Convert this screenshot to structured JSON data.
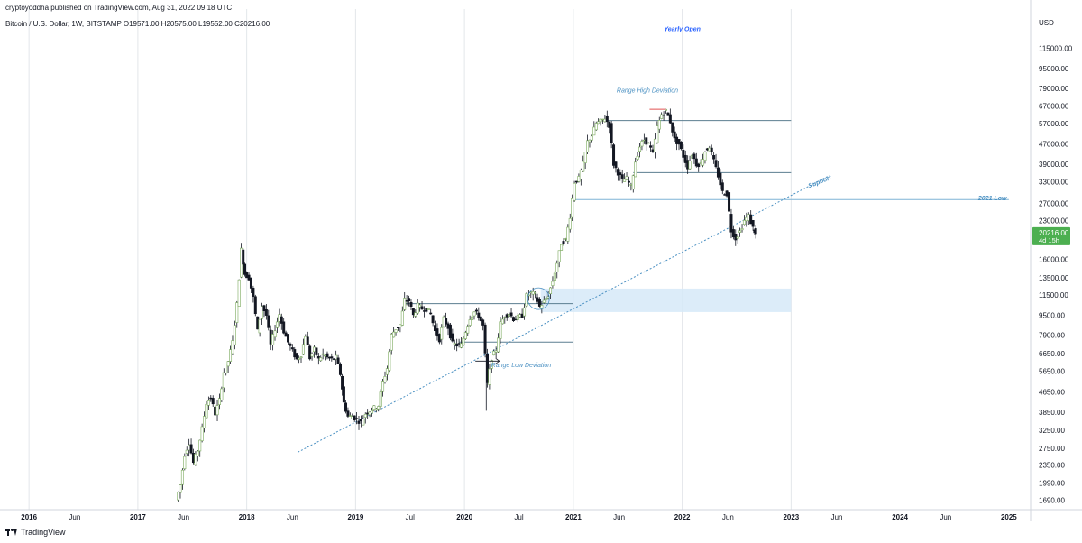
{
  "header": {
    "published": "cryptoyoddha published on TradingView.com, Aug 31, 2022 09:18 UTC",
    "symbol_line": "Bitcoin / U.S. Dollar, 1W, BITSTAMP  O19571.00  H20575.00  L19552.00  C20216.00",
    "currency": "USD"
  },
  "footer": {
    "brand": "TradingView",
    "logo_icon": "tradingview-logo-icon"
  },
  "last_price": {
    "value": "20216.00",
    "countdown": "4d 15h",
    "color": "#4caf50"
  },
  "chart_data": {
    "type": "candlestick",
    "instrument": "Bitcoin / U.S. Dollar",
    "exchange": "BITSTAMP",
    "timeframe": "1W",
    "ohlc_last": {
      "open": 19571.0,
      "high": 20575.0,
      "low": 19552.0,
      "close": 20216.0
    },
    "y_scale": "log",
    "ylim": [
      1550,
      140000
    ],
    "xlim": [
      2015.8,
      2025.2
    ],
    "y_ticks": [
      115000,
      95000,
      79000,
      67000,
      57000,
      47000,
      39000,
      33000,
      27000,
      23000,
      16000,
      13500,
      11500,
      9500,
      7900,
      6650,
      5650,
      4650,
      3850,
      3250,
      2750,
      2350,
      1990,
      1690
    ],
    "y_tick_labels": [
      "115000.00",
      "95000.00",
      "79000.00",
      "67000.00",
      "57000.00",
      "47000.00",
      "39000.00",
      "33000.00",
      "27000.00",
      "23000.00",
      "16000.00",
      "13500.00",
      "11500.00",
      "9500.00",
      "7900.00",
      "6650.00",
      "5650.00",
      "4650.00",
      "3850.00",
      "3250.00",
      "2750.00",
      "2350.00",
      "1990.00",
      "1690.00"
    ],
    "x_ticks": [
      {
        "t": 2016.0,
        "label": "2016",
        "bold": true
      },
      {
        "t": 2016.42,
        "label": "Jun",
        "bold": false
      },
      {
        "t": 2017.0,
        "label": "2017",
        "bold": true
      },
      {
        "t": 2017.42,
        "label": "Jun",
        "bold": false
      },
      {
        "t": 2018.0,
        "label": "2018",
        "bold": true
      },
      {
        "t": 2018.42,
        "label": "Jun",
        "bold": false
      },
      {
        "t": 2019.0,
        "label": "2019",
        "bold": true
      },
      {
        "t": 2019.5,
        "label": "Jul",
        "bold": false
      },
      {
        "t": 2020.0,
        "label": "2020",
        "bold": true
      },
      {
        "t": 2020.5,
        "label": "Jul",
        "bold": false
      },
      {
        "t": 2021.0,
        "label": "2021",
        "bold": true
      },
      {
        "t": 2021.42,
        "label": "Jun",
        "bold": false
      },
      {
        "t": 2022.0,
        "label": "2022",
        "bold": true
      },
      {
        "t": 2022.42,
        "label": "Jun",
        "bold": false
      },
      {
        "t": 2023.0,
        "label": "2023",
        "bold": true
      },
      {
        "t": 2023.42,
        "label": "Jun",
        "bold": false
      },
      {
        "t": 2024.0,
        "label": "2024",
        "bold": true
      },
      {
        "t": 2024.42,
        "label": "Jun",
        "bold": false
      },
      {
        "t": 2025.0,
        "label": "2025",
        "bold": true
      }
    ],
    "price_path": [
      [
        2017.36,
        1700
      ],
      [
        2017.4,
        1950
      ],
      [
        2017.44,
        2600
      ],
      [
        2017.48,
        2900
      ],
      [
        2017.52,
        2400
      ],
      [
        2017.56,
        2700
      ],
      [
        2017.6,
        3300
      ],
      [
        2017.64,
        4200
      ],
      [
        2017.68,
        4400
      ],
      [
        2017.72,
        3800
      ],
      [
        2017.76,
        4300
      ],
      [
        2017.8,
        5600
      ],
      [
        2017.84,
        6200
      ],
      [
        2017.88,
        7400
      ],
      [
        2017.92,
        10500
      ],
      [
        2017.96,
        17500
      ],
      [
        2017.99,
        14000
      ],
      [
        2018.03,
        13500
      ],
      [
        2018.07,
        11200
      ],
      [
        2018.11,
        8200
      ],
      [
        2018.15,
        10400
      ],
      [
        2018.19,
        9500
      ],
      [
        2018.23,
        7200
      ],
      [
        2018.27,
        8400
      ],
      [
        2018.31,
        9600
      ],
      [
        2018.35,
        8200
      ],
      [
        2018.39,
        7400
      ],
      [
        2018.43,
        6800
      ],
      [
        2018.47,
        6300
      ],
      [
        2018.51,
        6600
      ],
      [
        2018.55,
        7900
      ],
      [
        2018.59,
        6400
      ],
      [
        2018.63,
        6900
      ],
      [
        2018.67,
        6300
      ],
      [
        2018.71,
        6600
      ],
      [
        2018.75,
        6400
      ],
      [
        2018.79,
        6300
      ],
      [
        2018.83,
        6400
      ],
      [
        2018.87,
        5500
      ],
      [
        2018.9,
        4200
      ],
      [
        2018.94,
        3700
      ],
      [
        2018.98,
        3700
      ],
      [
        2019.02,
        3600
      ],
      [
        2019.06,
        3500
      ],
      [
        2019.1,
        3800
      ],
      [
        2019.14,
        3900
      ],
      [
        2019.18,
        4000
      ],
      [
        2019.22,
        4100
      ],
      [
        2019.26,
        5100
      ],
      [
        2019.3,
        5800
      ],
      [
        2019.34,
        7900
      ],
      [
        2019.38,
        8400
      ],
      [
        2019.42,
        8700
      ],
      [
        2019.46,
        11000
      ],
      [
        2019.5,
        10900
      ],
      [
        2019.54,
        9500
      ],
      [
        2019.58,
        10400
      ],
      [
        2019.62,
        10100
      ],
      [
        2019.66,
        10100
      ],
      [
        2019.7,
        9600
      ],
      [
        2019.74,
        8200
      ],
      [
        2019.78,
        7600
      ],
      [
        2019.82,
        9200
      ],
      [
        2019.86,
        8500
      ],
      [
        2019.9,
        7300
      ],
      [
        2019.94,
        7200
      ],
      [
        2019.98,
        7200
      ],
      [
        2020.02,
        8200
      ],
      [
        2020.06,
        9300
      ],
      [
        2020.1,
        9800
      ],
      [
        2020.14,
        9500
      ],
      [
        2020.18,
        8600
      ],
      [
        2020.22,
        5000
      ],
      [
        2020.26,
        6400
      ],
      [
        2020.3,
        6900
      ],
      [
        2020.34,
        8800
      ],
      [
        2020.38,
        9500
      ],
      [
        2020.42,
        9700
      ],
      [
        2020.46,
        9200
      ],
      [
        2020.5,
        9300
      ],
      [
        2020.54,
        9500
      ],
      [
        2020.58,
        11400
      ],
      [
        2020.62,
        11700
      ],
      [
        2020.66,
        11500
      ],
      [
        2020.7,
        10300
      ],
      [
        2020.74,
        10800
      ],
      [
        2020.78,
        11500
      ],
      [
        2020.82,
        13100
      ],
      [
        2020.86,
        15500
      ],
      [
        2020.9,
        18700
      ],
      [
        2020.94,
        19200
      ],
      [
        2020.98,
        24000
      ],
      [
        2021.02,
        33000
      ],
      [
        2021.06,
        34000
      ],
      [
        2021.1,
        39000
      ],
      [
        2021.14,
        48000
      ],
      [
        2021.18,
        51000
      ],
      [
        2021.22,
        57000
      ],
      [
        2021.26,
        58000
      ],
      [
        2021.3,
        60000
      ],
      [
        2021.34,
        56000
      ],
      [
        2021.38,
        39000
      ],
      [
        2021.42,
        36000
      ],
      [
        2021.46,
        33500
      ],
      [
        2021.5,
        34000
      ],
      [
        2021.54,
        31500
      ],
      [
        2021.58,
        40000
      ],
      [
        2021.62,
        46000
      ],
      [
        2021.66,
        49000
      ],
      [
        2021.7,
        47000
      ],
      [
        2021.74,
        43000
      ],
      [
        2021.78,
        55000
      ],
      [
        2021.82,
        62000
      ],
      [
        2021.86,
        64000
      ],
      [
        2021.9,
        58000
      ],
      [
        2021.94,
        49000
      ],
      [
        2021.98,
        47000
      ],
      [
        2022.02,
        42000
      ],
      [
        2022.06,
        38000
      ],
      [
        2022.1,
        43000
      ],
      [
        2022.14,
        39000
      ],
      [
        2022.18,
        39000
      ],
      [
        2022.22,
        44000
      ],
      [
        2022.26,
        46000
      ],
      [
        2022.3,
        40000
      ],
      [
        2022.34,
        35000
      ],
      [
        2022.38,
        30000
      ],
      [
        2022.42,
        29500
      ],
      [
        2022.46,
        21000
      ],
      [
        2022.5,
        19500
      ],
      [
        2022.54,
        20800
      ],
      [
        2022.58,
        23000
      ],
      [
        2022.62,
        24000
      ],
      [
        2022.66,
        21500
      ],
      [
        2022.68,
        20216
      ]
    ],
    "annotations": [
      {
        "text": "Yearly Open",
        "t": 2022.0,
        "y": 135000,
        "align": "middle"
      },
      {
        "text": "Range High Deviation",
        "t": 2021.68,
        "y": 76000,
        "align": "middle"
      },
      {
        "text": "Range Low Deviation",
        "t": 2020.52,
        "y": 5850,
        "align": "middle"
      },
      {
        "text": "2021 Low",
        "t": 2024.98,
        "y": 27800,
        "align": "end"
      },
      {
        "text": "Support",
        "t": 2023.27,
        "y": 32500,
        "align": "middle",
        "rotate": -22
      }
    ],
    "levels": [
      {
        "name": "range-high-line",
        "y": 58500,
        "t0": 2021.32,
        "t1": 2023.0,
        "color": "#5b7e91"
      },
      {
        "name": "mid-range-line",
        "y": 36000,
        "t0": 2021.55,
        "t1": 2023.0,
        "color": "#5b7e91"
      },
      {
        "name": "yearly-low-line",
        "y": 28000,
        "t0": 2021.0,
        "t1": 2025.0,
        "color": "#7fb3d5"
      },
      {
        "name": "breakout-level-line",
        "y": 10600,
        "t0": 2019.45,
        "t1": 2021.0,
        "color": "#5b7e91"
      },
      {
        "name": "range-low-line",
        "y": 7400,
        "t0": 2019.95,
        "t1": 2021.0,
        "color": "#5b7e91"
      }
    ],
    "support_line": {
      "t0": 2018.47,
      "y0": 2650,
      "t1": 2023.35,
      "y1": 35000,
      "color": "#4a90c2"
    },
    "zone": {
      "t0": 2020.7,
      "t1": 2023.0,
      "y0": 9800,
      "y1": 12200,
      "color": "#d6e9f8"
    },
    "vertical_lines": [
      2016.0,
      2017.0,
      2018.0,
      2019.0,
      2020.0,
      2021.0,
      2022.0,
      2023.0
    ]
  }
}
